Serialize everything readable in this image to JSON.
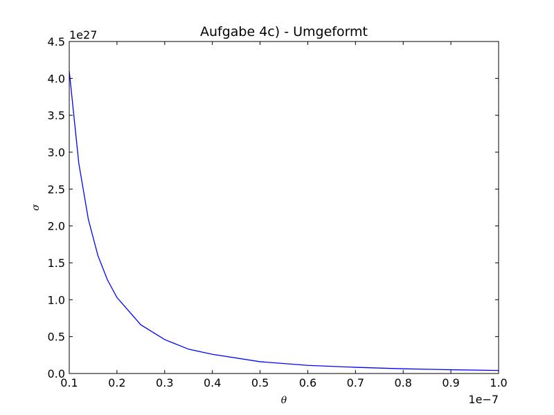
{
  "chart_data": {
    "type": "line",
    "title": "Aufgabe 4c) - Umgeformt",
    "xlabel": "θ",
    "ylabel": "σ",
    "x_offset_label": "1e−7",
    "y_offset_label": "1e27",
    "xlim": [
      0.1,
      1.0
    ],
    "ylim": [
      0.0,
      4.5
    ],
    "x_ticks": [
      "0.1",
      "0.2",
      "0.3",
      "0.4",
      "0.5",
      "0.6",
      "0.7",
      "0.8",
      "0.9",
      "1.0"
    ],
    "y_ticks": [
      "0.0",
      "0.5",
      "1.0",
      "1.5",
      "2.0",
      "2.5",
      "3.0",
      "3.5",
      "4.0",
      "4.5"
    ],
    "grid": false,
    "series": [
      {
        "color": "#0000ff",
        "x": [
          0.1,
          0.12,
          0.14,
          0.16,
          0.18,
          0.2,
          0.25,
          0.3,
          0.35,
          0.4,
          0.5,
          0.6,
          0.7,
          0.8,
          0.9,
          1.0
        ],
        "y": [
          4.1,
          2.85,
          2.09,
          1.6,
          1.27,
          1.03,
          0.66,
          0.46,
          0.33,
          0.26,
          0.16,
          0.11,
          0.084,
          0.064,
          0.051,
          0.041
        ]
      }
    ]
  }
}
